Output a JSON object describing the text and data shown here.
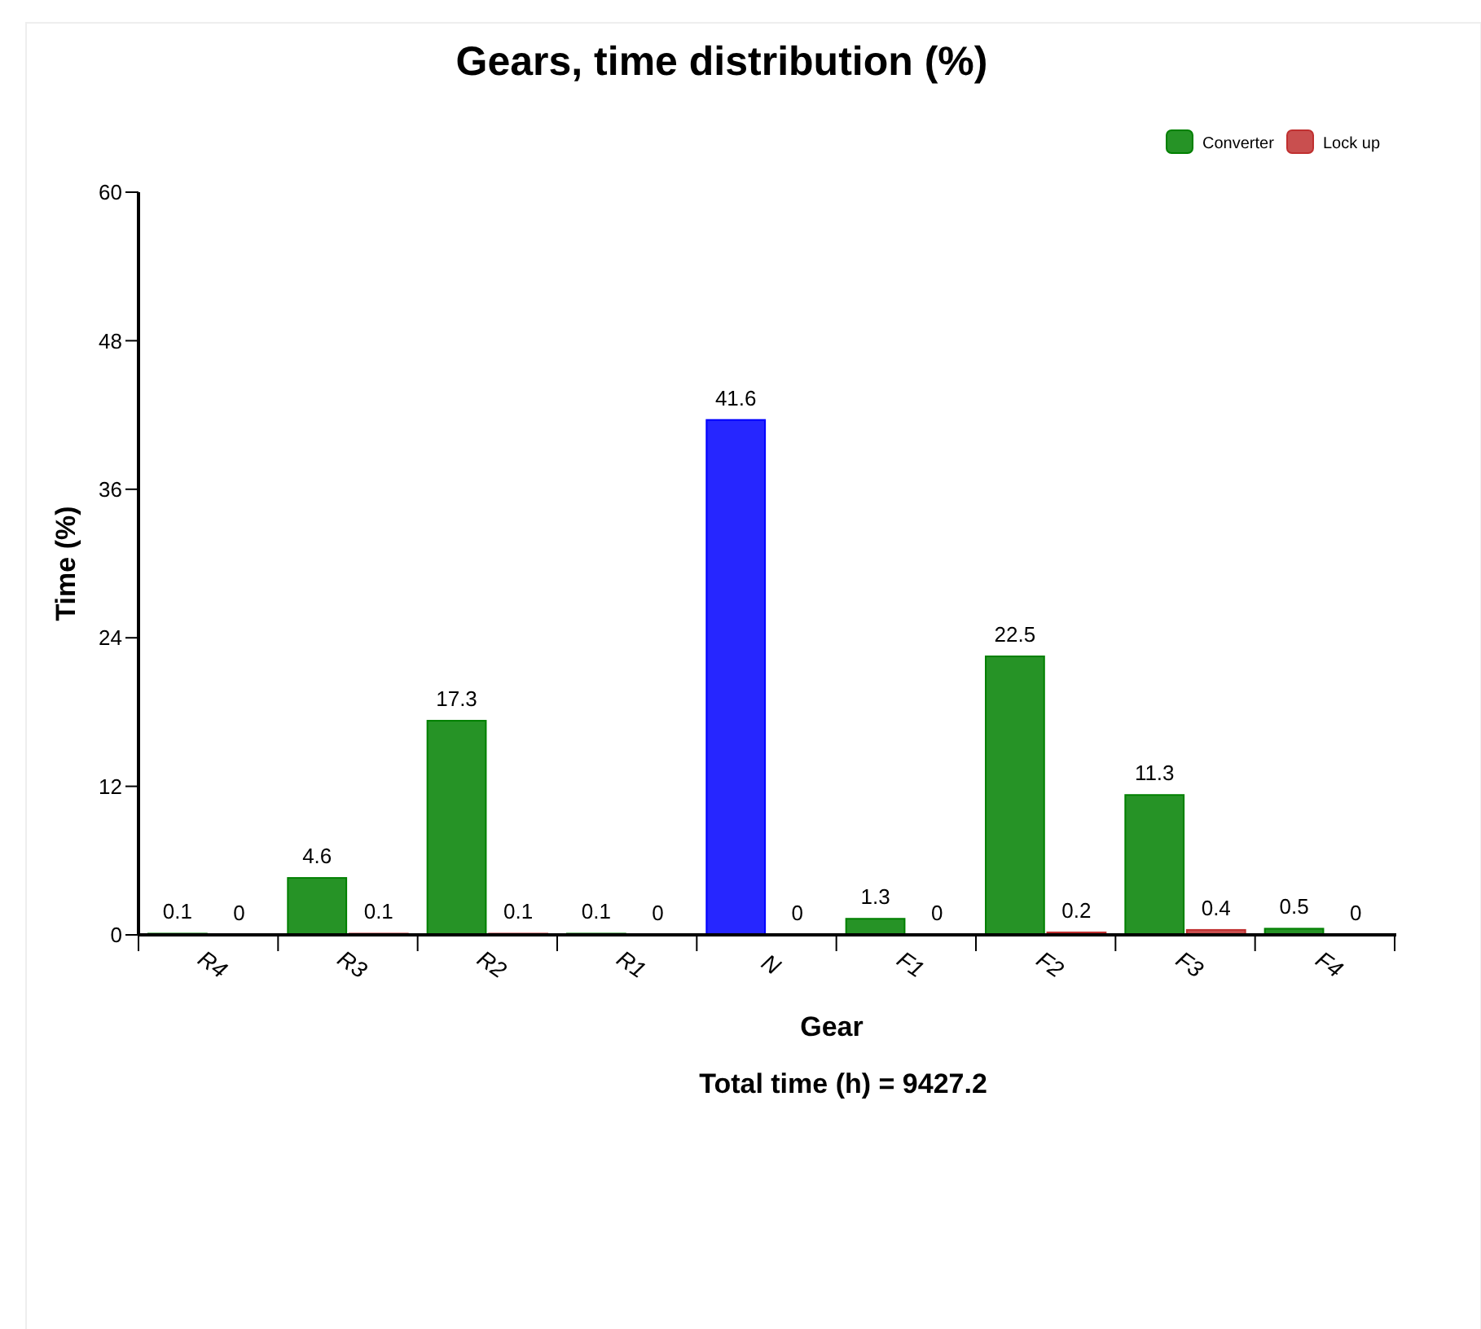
{
  "chart_data": {
    "type": "bar",
    "title": "Gears, time distribution (%)",
    "xlabel": "Gear",
    "ylabel": "Time (%)",
    "annotations": [
      "Total time (h) = 9427.2"
    ],
    "categories": [
      "R4",
      "R3",
      "R2",
      "R1",
      "N",
      "F1",
      "F2",
      "F3",
      "F4"
    ],
    "series": [
      {
        "name": "Converter",
        "color": "#008000",
        "colors": [
          "#008000",
          "#008000",
          "#008000",
          "#008000",
          "#0000ff",
          "#008000",
          "#008000",
          "#008000",
          "#008000"
        ],
        "values": [
          0.1,
          4.6,
          17.3,
          0.1,
          41.6,
          1.3,
          22.5,
          11.3,
          0.5
        ]
      },
      {
        "name": "Lock up",
        "color": "#c03030",
        "values": [
          0,
          0.1,
          0.1,
          0,
          0,
          0,
          0.2,
          0.4,
          0
        ]
      }
    ],
    "ylim": [
      0,
      60
    ],
    "yticks": [
      0,
      12,
      24,
      36,
      48,
      60
    ],
    "data_labels": true,
    "legend": "top right",
    "grid": false
  }
}
